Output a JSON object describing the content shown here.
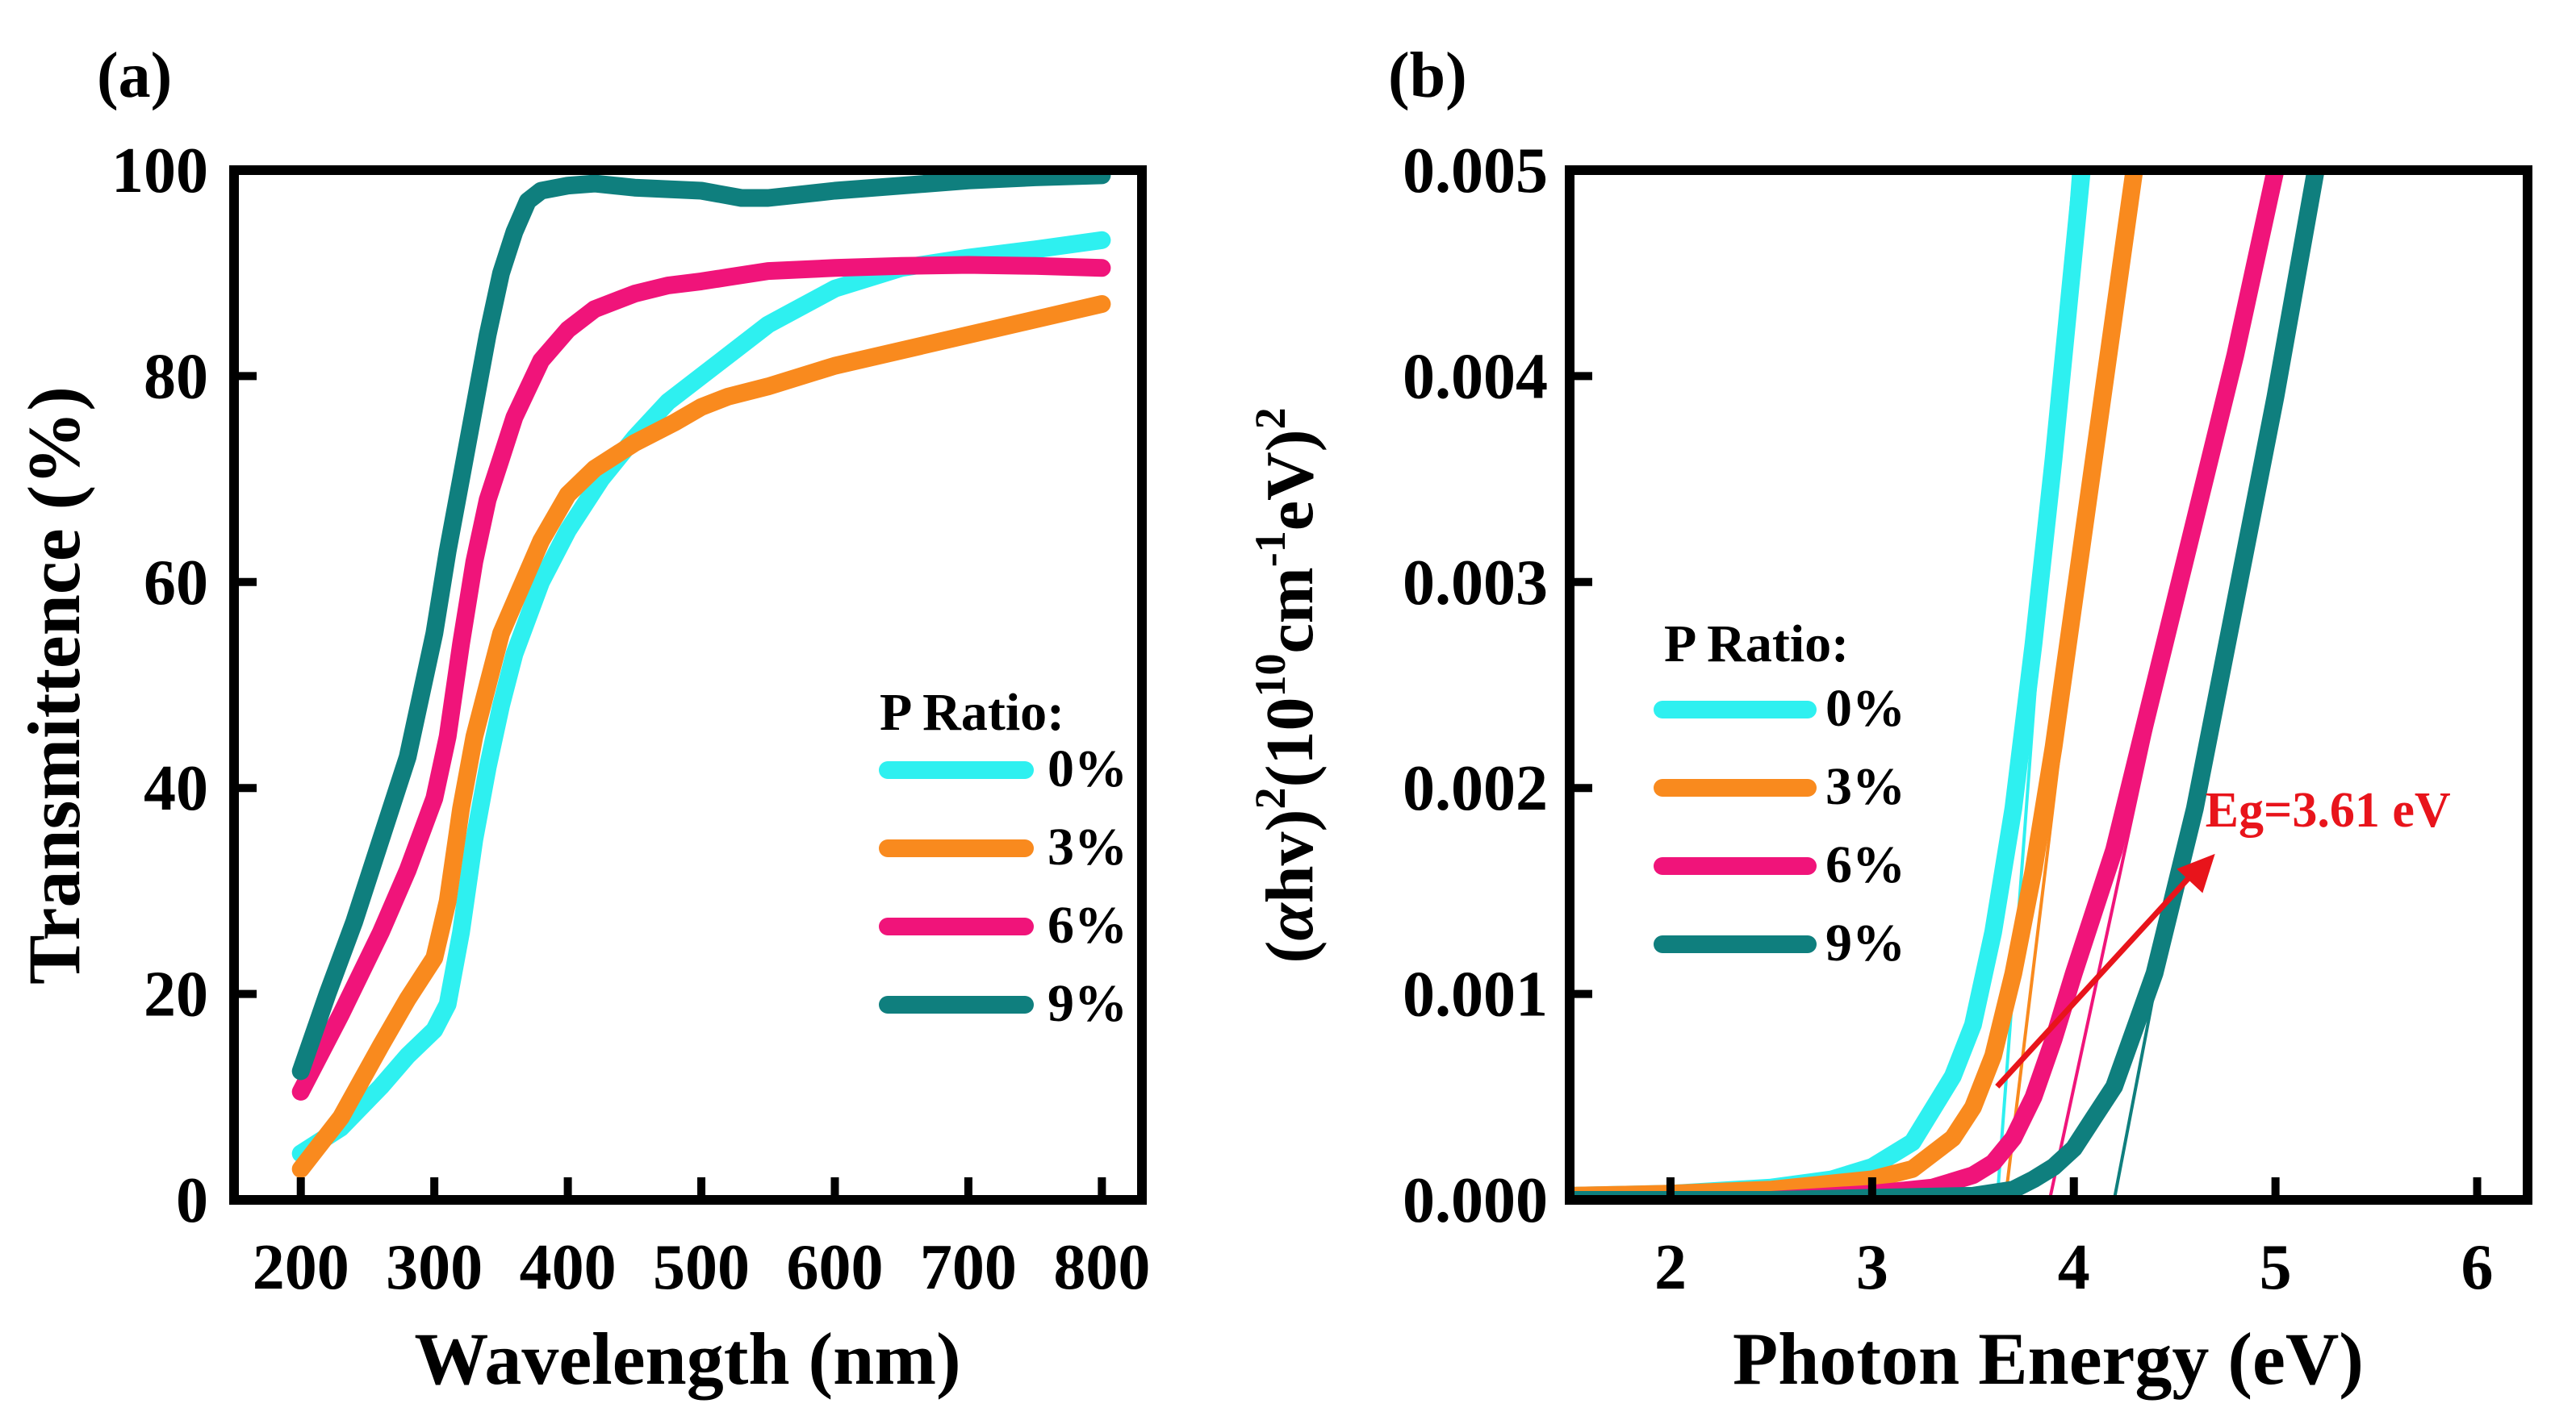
{
  "chart_data": [
    {
      "type": "line",
      "panel_label": "(a)",
      "xlabel": "Wavelength (nm)",
      "ylabel": "Transmittence (%)",
      "xlim": [
        150,
        830
      ],
      "ylim": [
        0,
        100
      ],
      "xticks": [
        200,
        300,
        400,
        500,
        600,
        700,
        800
      ],
      "yticks": [
        0,
        20,
        40,
        60,
        80,
        100
      ],
      "legend": {
        "title": "P Ratio:",
        "position": "center-right"
      },
      "series": [
        {
          "name": "0%",
          "color": "#2ef0f0",
          "x": [
            200,
            230,
            260,
            280,
            300,
            310,
            320,
            330,
            340,
            350,
            360,
            380,
            400,
            425,
            450,
            475,
            500,
            525,
            550,
            600,
            650,
            700,
            750,
            800
          ],
          "y": [
            4.5,
            7,
            11,
            14,
            16.5,
            19,
            26,
            35,
            42,
            48,
            53,
            60,
            65,
            70,
            74,
            77.5,
            80,
            82.5,
            85,
            88.5,
            90.5,
            91.5,
            92.3,
            93.2
          ]
        },
        {
          "name": "3%",
          "color": "#f98a1e",
          "x": [
            200,
            230,
            260,
            280,
            300,
            310,
            320,
            330,
            340,
            350,
            360,
            380,
            400,
            420,
            450,
            480,
            500,
            520,
            550,
            600,
            650,
            700,
            750,
            800
          ],
          "y": [
            3,
            8,
            15,
            19.5,
            23.5,
            29,
            38,
            45,
            50,
            55,
            58,
            64,
            68.5,
            71,
            73.5,
            75.5,
            77,
            78,
            79,
            81,
            82.5,
            84,
            85.5,
            87
          ]
        },
        {
          "name": "6%",
          "color": "#f0147a",
          "x": [
            200,
            230,
            260,
            280,
            300,
            310,
            320,
            330,
            340,
            350,
            360,
            380,
            400,
            420,
            450,
            475,
            500,
            520,
            550,
            600,
            650,
            700,
            750,
            800
          ],
          "y": [
            10.5,
            18,
            26,
            32,
            39,
            45,
            54,
            62,
            68,
            72,
            76,
            81.5,
            84.5,
            86.5,
            88,
            88.8,
            89.2,
            89.6,
            90.2,
            90.5,
            90.7,
            90.8,
            90.7,
            90.5
          ]
        },
        {
          "name": "9%",
          "color": "#0f7f7e",
          "x": [
            200,
            220,
            240,
            260,
            280,
            300,
            310,
            320,
            330,
            340,
            350,
            360,
            370,
            380,
            400,
            420,
            450,
            500,
            530,
            550,
            600,
            650,
            700,
            750,
            800
          ],
          "y": [
            12.5,
            20,
            27,
            35,
            43,
            55,
            63,
            70,
            77,
            84,
            90,
            94,
            97,
            98,
            98.5,
            98.7,
            98.3,
            98,
            97.3,
            97.3,
            98,
            98.5,
            99,
            99.3,
            99.5
          ]
        }
      ]
    },
    {
      "type": "line",
      "panel_label": "(b)",
      "xlabel": "Photon Energy (eV)",
      "ylabel_parts": [
        "(",
        "α",
        "hv)",
        "2",
        "(10",
        "10",
        "cm",
        "-1",
        "eV)",
        "2"
      ],
      "xlim": [
        1.5,
        6.25
      ],
      "ylim": [
        0,
        0.005
      ],
      "xticks": [
        2,
        3,
        4,
        5,
        6
      ],
      "yticks": [
        "0.000",
        "0.001",
        "0.002",
        "0.003",
        "0.004",
        "0.005"
      ],
      "legend": {
        "title": "P Ratio:",
        "position": "center-left"
      },
      "annotation": {
        "text": "Eg=3.61 eV",
        "color": "#e8141b",
        "arrow_from": [
          3.62,
          0.00055
        ],
        "arrow_to": [
          4.7,
          0.00168
        ]
      },
      "series": [
        {
          "name": "0%",
          "color": "#2ef0f0",
          "x": [
            1.5,
            2.0,
            2.5,
            2.8,
            3.0,
            3.2,
            3.4,
            3.5,
            3.6,
            3.65,
            3.7,
            3.8,
            3.9,
            4.0,
            4.04
          ],
          "y": [
            2e-05,
            3e-05,
            6e-05,
            0.0001,
            0.00016,
            0.00028,
            0.0006,
            0.00085,
            0.0013,
            0.0016,
            0.0019,
            0.0027,
            0.0036,
            0.0046,
            0.005
          ]
        },
        {
          "name": "3%",
          "color": "#f98a1e",
          "x": [
            1.5,
            2.0,
            2.5,
            2.8,
            3.0,
            3.2,
            3.4,
            3.5,
            3.6,
            3.7,
            3.8,
            3.9,
            4.0,
            4.1,
            4.2,
            4.3
          ],
          "y": [
            2e-05,
            3e-05,
            5e-05,
            8e-05,
            0.0001,
            0.00015,
            0.0003,
            0.00045,
            0.0007,
            0.0011,
            0.0016,
            0.0022,
            0.0029,
            0.0036,
            0.0043,
            0.005
          ]
        },
        {
          "name": "6%",
          "color": "#f0147a",
          "x": [
            1.5,
            2.5,
            3.0,
            3.3,
            3.5,
            3.6,
            3.7,
            3.8,
            3.9,
            4.0,
            4.2,
            4.4,
            4.6,
            4.8,
            5.0
          ],
          "y": [
            0,
            0,
            3e-05,
            6e-05,
            0.00012,
            0.00018,
            0.0003,
            0.0005,
            0.00078,
            0.0011,
            0.0017,
            0.0025,
            0.0033,
            0.0041,
            0.005
          ]
        },
        {
          "name": "9%",
          "color": "#0f7f7e",
          "x": [
            1.5,
            2.5,
            3.0,
            3.5,
            3.7,
            3.8,
            3.9,
            4.0,
            4.1,
            4.2,
            4.4,
            4.6,
            4.8,
            5.0,
            5.2
          ],
          "y": [
            0,
            0,
            1e-05,
            2e-05,
            5e-05,
            0.0001,
            0.00016,
            0.00025,
            0.0004,
            0.00055,
            0.0011,
            0.0019,
            0.0029,
            0.0039,
            0.005
          ]
        }
      ],
      "tangents": [
        {
          "series": "0%",
          "color": "#2ef0f0",
          "x": [
            3.62,
            4.0
          ],
          "y": [
            0,
            0.005
          ]
        },
        {
          "series": "3%",
          "color": "#f98a1e",
          "x": [
            3.66,
            4.28
          ],
          "y": [
            0,
            0.005
          ]
        },
        {
          "series": "6%",
          "color": "#f0147a",
          "x": [
            3.88,
            4.98
          ],
          "y": [
            0,
            0.005
          ]
        },
        {
          "series": "9%",
          "color": "#0f7f7e",
          "x": [
            4.2,
            5.18
          ],
          "y": [
            0,
            0.005
          ]
        }
      ]
    }
  ]
}
